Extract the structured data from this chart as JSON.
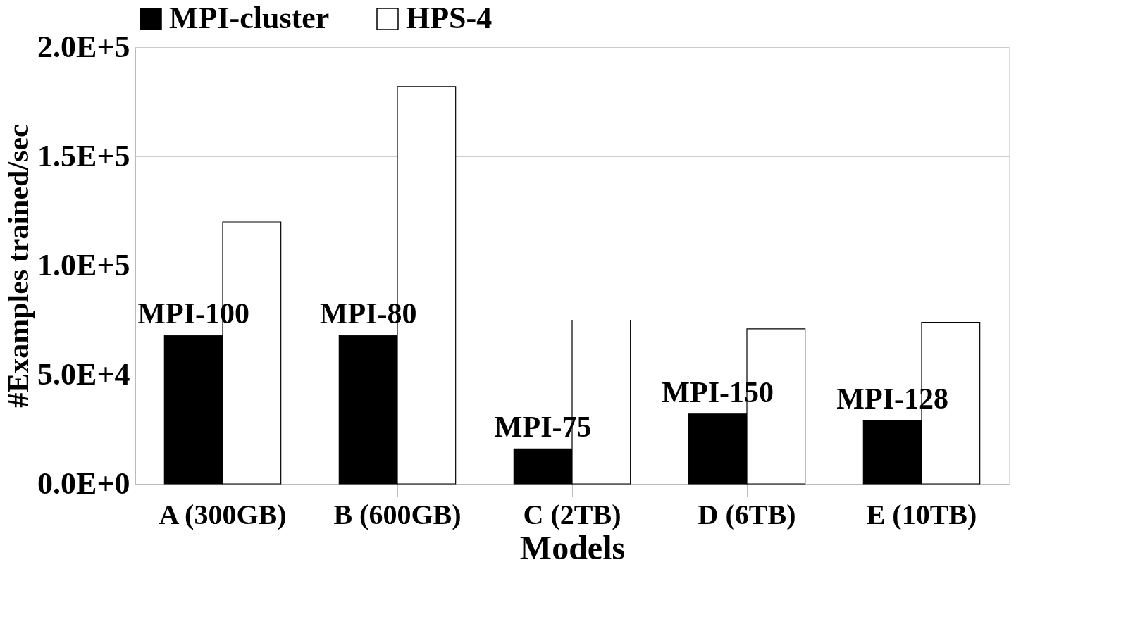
{
  "chart_data": {
    "type": "bar",
    "xlabel": "Models",
    "ylabel": "#Examples trained/sec",
    "categories": [
      "A (300GB)",
      "B (600GB)",
      "C (2TB)",
      "D (6TB)",
      "E (10TB)"
    ],
    "series": [
      {
        "name": "MPI-cluster",
        "color": "#000000",
        "values": [
          68000,
          68000,
          16000,
          32000,
          29000
        ]
      },
      {
        "name": "HPS-4",
        "color": "#ffffff",
        "values": [
          120000,
          182000,
          75000,
          71000,
          74000
        ]
      }
    ],
    "ylim": [
      0,
      200000
    ],
    "yticks": [
      {
        "value": 0,
        "label": "0.0E+0"
      },
      {
        "value": 50000,
        "label": "5.0E+4"
      },
      {
        "value": 100000,
        "label": "1.0E+5"
      },
      {
        "value": 150000,
        "label": "1.5E+5"
      },
      {
        "value": 200000,
        "label": "2.0E+5"
      }
    ],
    "annotations": [
      {
        "text": "MPI-100",
        "x": "A (300GB)",
        "y": 68000
      },
      {
        "text": "MPI-80",
        "x": "B (600GB)",
        "y": 68000
      },
      {
        "text": "MPI-75",
        "x": "C (2TB)",
        "y": 16000
      },
      {
        "text": "MPI-150",
        "x": "D (6TB)",
        "y": 32000
      },
      {
        "text": "MPI-128",
        "x": "E (10TB)",
        "y": 29000
      }
    ],
    "grid": "y",
    "legend": "top"
  }
}
